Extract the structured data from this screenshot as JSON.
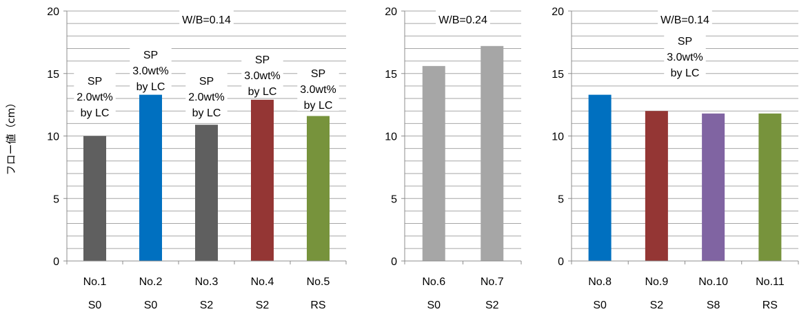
{
  "y_axis_title": "フロー値（cm）",
  "chart_data": [
    {
      "type": "bar",
      "ylim": [
        0,
        20
      ],
      "y_ticks": [
        0,
        5,
        10,
        15,
        20
      ],
      "ylabel": "フロー値（cm）",
      "grid": true,
      "categories": [
        "No.1",
        "No.2",
        "No.3",
        "No.4",
        "No.5"
      ],
      "sublabels": [
        "S0",
        "S0",
        "S2",
        "S2",
        "RS"
      ],
      "values": [
        10.0,
        13.3,
        10.9,
        12.9,
        11.6
      ],
      "colors": [
        "#5f5f5f",
        "#0070c0",
        "#5f5f5f",
        "#943634",
        "#77933c"
      ],
      "annotations": [
        {
          "lines": [
            "W/B=0.14"
          ],
          "x_center_index": 2,
          "y": 18.9
        },
        {
          "lines": [
            "SP",
            "2.0wt%",
            "by LC"
          ],
          "x_center_index": 0,
          "y": 14.0
        },
        {
          "lines": [
            "SP",
            "3.0wt%",
            "by LC"
          ],
          "x_center_index": 1,
          "y": 16.1
        },
        {
          "lines": [
            "SP",
            "2.0wt%",
            "by LC"
          ],
          "x_center_index": 2,
          "y": 14.0
        },
        {
          "lines": [
            "SP",
            "3.0wt%",
            "by LC"
          ],
          "x_center_index": 3,
          "y": 15.7
        },
        {
          "lines": [
            "SP",
            "3.0wt%",
            "by LC"
          ],
          "x_center_index": 4,
          "y": 14.6
        }
      ]
    },
    {
      "type": "bar",
      "ylim": [
        0,
        20
      ],
      "y_ticks": [
        0,
        5,
        10,
        15,
        20
      ],
      "grid": true,
      "categories": [
        "No.6",
        "No.7"
      ],
      "sublabels": [
        "S0",
        "S2"
      ],
      "values": [
        15.6,
        17.2
      ],
      "colors": [
        "#a6a6a6",
        "#a6a6a6"
      ],
      "annotations": [
        {
          "lines": [
            "W/B=0.24"
          ],
          "x_center_index": 0.5,
          "y": 18.9
        }
      ]
    },
    {
      "type": "bar",
      "ylim": [
        0,
        20
      ],
      "y_ticks": [
        0,
        5,
        10,
        15,
        20
      ],
      "grid": true,
      "categories": [
        "No.8",
        "No.9",
        "No.10",
        "No.11"
      ],
      "sublabels": [
        "S0",
        "S2",
        "S8",
        "RS"
      ],
      "values": [
        13.3,
        12.0,
        11.8,
        11.8
      ],
      "colors": [
        "#0070c0",
        "#943634",
        "#8064a2",
        "#77933c"
      ],
      "annotations": [
        {
          "lines": [
            "W/B=0.14"
          ],
          "x_center_index": 1.5,
          "y": 18.9
        },
        {
          "lines": [
            "SP",
            "3.0wt%",
            "by LC"
          ],
          "x_center_index": 1.5,
          "y": 17.2
        }
      ]
    }
  ]
}
